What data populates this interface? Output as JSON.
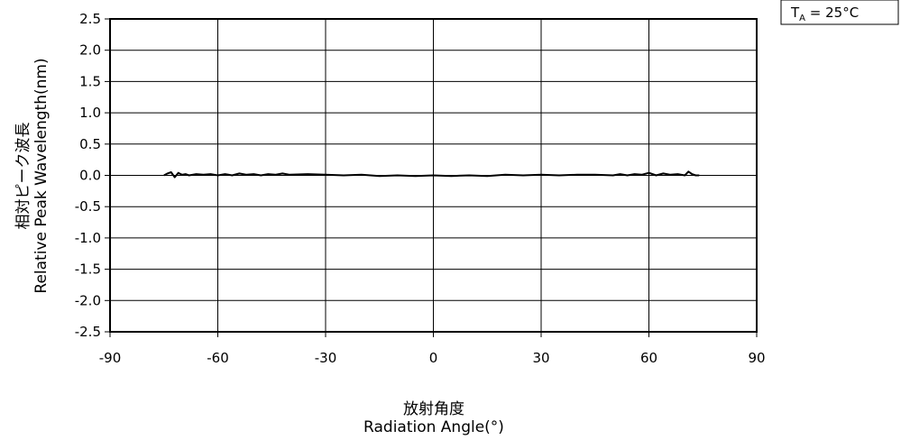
{
  "chart_data": {
    "type": "line",
    "xlabel_ja": "放射角度",
    "xlabel": "Radiation Angle(°)",
    "ylabel_ja": "相対ピーク波長",
    "ylabel": "Relative Peak Wavelength(nm)",
    "xlim": [
      -90,
      90
    ],
    "ylim": [
      -2.5,
      2.5
    ],
    "x_ticks": [
      -90,
      -60,
      -30,
      0,
      30,
      60,
      90
    ],
    "x_tick_labels": [
      "-90",
      "-60",
      "-30",
      "0",
      "30",
      "60",
      "90"
    ],
    "y_ticks": [
      2.5,
      2.0,
      1.5,
      1.0,
      0.5,
      0.0,
      -0.5,
      -1.0,
      -1.5,
      -2.0,
      -2.5
    ],
    "y_tick_labels": [
      "2.5",
      "2.0",
      "1.5",
      "1.0",
      "0.5",
      "0.0",
      "-0.5",
      "-1.0",
      "-1.5",
      "-2.0",
      "-2.5"
    ],
    "grid": {
      "vertical": true,
      "horizontal": true
    },
    "condition": {
      "main": "T",
      "sub": "A",
      "rest": " = 25°C"
    },
    "series": [
      {
        "x": [
          -75,
          -74,
          -73,
          -72,
          -71,
          -70,
          -69,
          -68,
          -66,
          -64,
          -62,
          -60,
          -58,
          -56,
          -54,
          -52,
          -50,
          -48,
          -46,
          -44,
          -42,
          -40,
          -35,
          -30,
          -25,
          -20,
          -15,
          -10,
          -5,
          0,
          5,
          10,
          15,
          20,
          25,
          30,
          35,
          40,
          45,
          50,
          52,
          54,
          56,
          58,
          60,
          62,
          64,
          66,
          68,
          70,
          71,
          72,
          73,
          74
        ],
        "y": [
          0.0,
          0.03,
          0.05,
          -0.03,
          0.04,
          0.01,
          0.02,
          0.0,
          0.02,
          0.01,
          0.02,
          0.0,
          0.02,
          0.0,
          0.03,
          0.01,
          0.02,
          0.0,
          0.02,
          0.01,
          0.03,
          0.01,
          0.02,
          0.01,
          0.0,
          0.01,
          -0.01,
          0.0,
          -0.01,
          0.0,
          -0.01,
          0.0,
          -0.01,
          0.01,
          0.0,
          0.01,
          0.0,
          0.01,
          0.01,
          0.0,
          0.02,
          0.0,
          0.02,
          0.01,
          0.04,
          0.0,
          0.03,
          0.01,
          0.02,
          0.0,
          0.06,
          0.02,
          0.0,
          0.0
        ]
      }
    ]
  }
}
